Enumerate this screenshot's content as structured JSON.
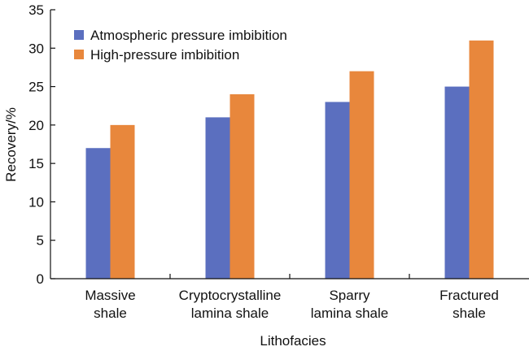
{
  "chart_data": {
    "type": "bar",
    "categories": [
      [
        "Massive",
        "shale"
      ],
      [
        "Cryptocrystalline",
        "lamina shale"
      ],
      [
        "Sparry",
        "lamina shale"
      ],
      [
        "Fractured",
        "shale"
      ]
    ],
    "series": [
      {
        "name": "Atmospheric pressure imbibition",
        "values": [
          17,
          21,
          23,
          25
        ],
        "color": "#5b6fbf"
      },
      {
        "name": "High-pressure imbibition",
        "values": [
          20,
          24,
          27,
          31
        ],
        "color": "#e8873c"
      }
    ],
    "xlabel": "Lithofacies",
    "ylabel": "Recovery/%",
    "ylim": [
      0,
      35
    ],
    "yticks": [
      0,
      5,
      10,
      15,
      20,
      25,
      30,
      35
    ],
    "grid": false,
    "legend_position": "top-left"
  }
}
